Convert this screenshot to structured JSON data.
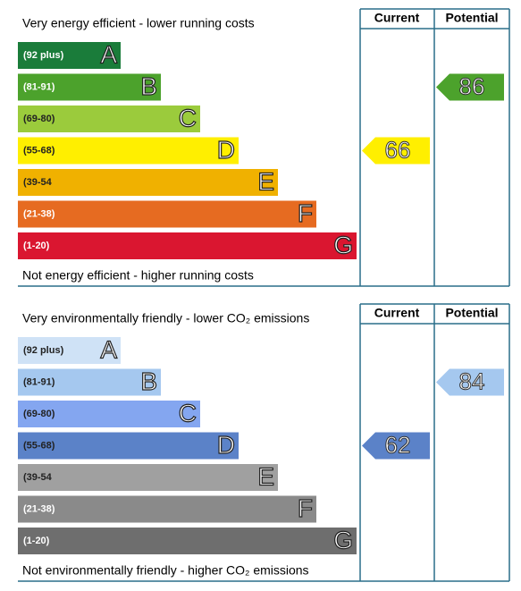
{
  "chart_data": [
    {
      "type": "epc",
      "top_text": "Very energy efficient - lower running costs",
      "bottom_text": "Not energy efficient - higher running costs",
      "headers": [
        "Current",
        "Potential"
      ],
      "bands": [
        {
          "range": "(92 plus)",
          "letter": "A",
          "color": "#1a7c3a",
          "text_color": "#ffffff"
        },
        {
          "range": "(81-91)",
          "letter": "B",
          "color": "#4ca22c",
          "text_color": "#ffffff"
        },
        {
          "range": "(69-80)",
          "letter": "C",
          "color": "#9bcb3c",
          "text_color": "#222222"
        },
        {
          "range": "(55-68)",
          "letter": "D",
          "color": "#ffef00",
          "text_color": "#222222"
        },
        {
          "range": "(39-54",
          "letter": "E",
          "color": "#f0b100",
          "text_color": "#222222"
        },
        {
          "range": "(21-38)",
          "letter": "F",
          "color": "#e66b21",
          "text_color": "#ffffff"
        },
        {
          "range": "(1-20)",
          "letter": "G",
          "color": "#da1630",
          "text_color": "#ffffff"
        }
      ],
      "current": 66,
      "potential": 86
    },
    {
      "type": "epc",
      "top_text": "Very environmentally friendly - lower CO₂ emissions",
      "bottom_text": "Not environmentally friendly - higher CO₂ emissions",
      "headers": [
        "Current",
        "Potential"
      ],
      "bands": [
        {
          "range": "(92 plus)",
          "letter": "A",
          "color": "#cfe2f6",
          "text_color": "#222222"
        },
        {
          "range": "(81-91)",
          "letter": "B",
          "color": "#a5c8ef",
          "text_color": "#222222"
        },
        {
          "range": "(69-80)",
          "letter": "C",
          "color": "#84a6f0",
          "text_color": "#222222"
        },
        {
          "range": "(55-68)",
          "letter": "D",
          "color": "#5b82c8",
          "text_color": "#222222"
        },
        {
          "range": "(39-54",
          "letter": "E",
          "color": "#a0a0a0",
          "text_color": "#222222"
        },
        {
          "range": "(21-38)",
          "letter": "F",
          "color": "#8a8a8a",
          "text_color": "#ffffff"
        },
        {
          "range": "(1-20)",
          "letter": "G",
          "color": "#6e6e6e",
          "text_color": "#ffffff"
        }
      ],
      "current": 62,
      "potential": 84
    }
  ]
}
